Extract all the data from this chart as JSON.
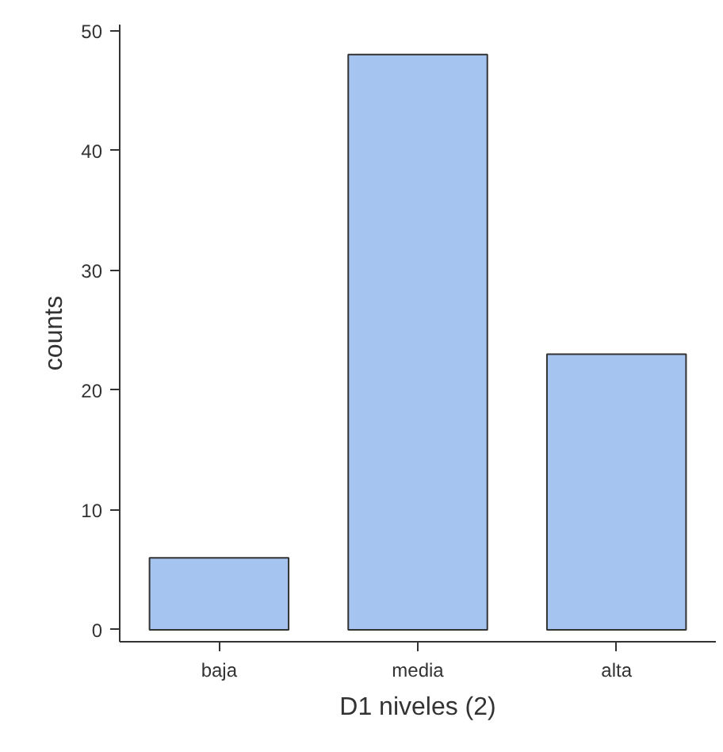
{
  "chart_data": {
    "type": "bar",
    "xlabel": "D1 niveles (2)",
    "ylabel": "counts",
    "categories": [
      "baja",
      "media",
      "alta"
    ],
    "values": [
      6,
      48,
      23
    ],
    "color": "#a6c4f0",
    "ylim": [
      -1,
      50.5
    ],
    "yticks": [
      0,
      10,
      20,
      30,
      40,
      50
    ],
    "grid": false
  }
}
